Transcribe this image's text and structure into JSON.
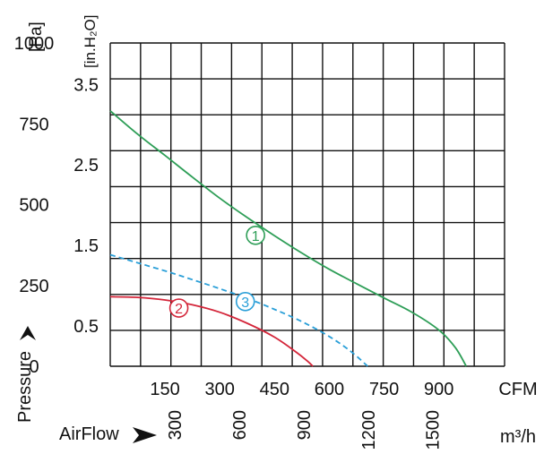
{
  "chart_data": {
    "type": "line",
    "title": "",
    "xlabel": "AirFlow",
    "ylabel": "Pressure",
    "grid": true,
    "x_unit_primary": "CFM",
    "x_unit_secondary": "m³/h",
    "y_unit_pa": "[Pa]",
    "y_unit_inh2o": "[in.H₂O]",
    "xlim": [
      0,
      1080
    ],
    "ylim": [
      0,
      1000
    ],
    "x_ticks_cfm": [
      "150",
      "300",
      "450",
      "600",
      "750",
      "900"
    ],
    "x_ticks_m3h": [
      "300",
      "600",
      "900",
      "1200",
      "1500"
    ],
    "y_ticks_pa": [
      "0",
      "250",
      "500",
      "750",
      "1000"
    ],
    "y_ticks_inh2o": [
      "0.5",
      "1.5",
      "2.5",
      "3.5"
    ],
    "series": [
      {
        "name": "1",
        "color": "#2e9e57",
        "dashed": false,
        "x": [
          0,
          75,
          150,
          225,
          300,
          375,
          450,
          525,
          600,
          675,
          750,
          825,
          900,
          945,
          975
        ],
        "y": [
          790,
          718,
          652,
          585,
          520,
          460,
          404,
          350,
          300,
          255,
          211,
          168,
          112,
          58,
          0
        ]
      },
      {
        "name": "2",
        "color": "#d4263a",
        "dashed": false,
        "x": [
          0,
          75,
          150,
          225,
          300,
          375,
          450,
          510,
          540,
          555
        ],
        "y": [
          215,
          213,
          205,
          190,
          167,
          133,
          90,
          43,
          16,
          0
        ]
      },
      {
        "name": "3",
        "color": "#2a9fd8",
        "dashed": true,
        "x": [
          0,
          75,
          150,
          225,
          300,
          375,
          450,
          525,
          600,
          660,
          705
        ],
        "y": [
          345,
          320,
          295,
          268,
          240,
          210,
          176,
          138,
          92,
          45,
          0
        ]
      }
    ],
    "curve_labels": [
      {
        "text": "1",
        "x": 398,
        "y": 405,
        "color": "#2e9e57"
      },
      {
        "text": "2",
        "x": 188,
        "y": 180,
        "color": "#d4263a"
      },
      {
        "text": "3",
        "x": 370,
        "y": 200,
        "color": "#2a9fd8"
      }
    ]
  }
}
